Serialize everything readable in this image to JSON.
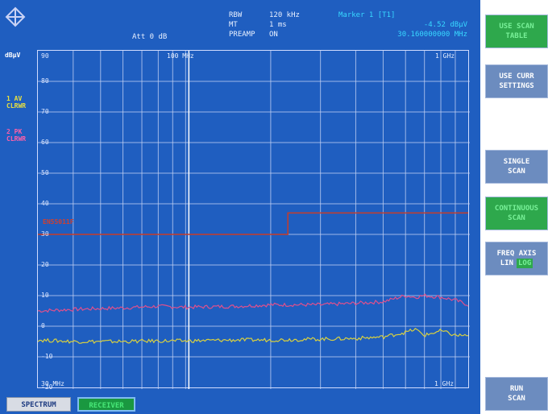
{
  "header": {
    "att": "Att 0 dB",
    "rbw_label": "RBW",
    "rbw_value": "120 kHz",
    "mt_label": "MT",
    "mt_value": "1 ms",
    "preamp_label": "PREAMP",
    "preamp_value": "ON",
    "marker_label": "Marker 1 [T1]",
    "marker_level": "-4.52 dBµV",
    "marker_freq": "30.160000000 MHz"
  },
  "side_labels": {
    "unit": "dBµV",
    "trace1_line1": "1 AV",
    "trace1_line2": "CLRWR",
    "trace2_line1": "2 PK",
    "trace2_line2": "CLRWR"
  },
  "chart_data": {
    "type": "line",
    "title": "",
    "xlabel": "",
    "ylabel": "dBµV",
    "x_scale": "log",
    "xlim_mhz": [
      30,
      1000
    ],
    "ylim": [
      -20,
      90
    ],
    "y_ticks": [
      "90",
      "80",
      "70",
      "60",
      "50",
      "40",
      "30",
      "20",
      "10",
      "0",
      "-10",
      "-20"
    ],
    "x_tick_top": [
      "100 MHz",
      "1 GHz"
    ],
    "x_tick_bottom": [
      "30 MHz",
      "1 GHz"
    ],
    "grid": true,
    "limit_line": {
      "name": "EN55011F",
      "color": "#c83c28",
      "points_mhz_db": [
        [
          30,
          30
        ],
        [
          230,
          30
        ],
        [
          230,
          37
        ],
        [
          1000,
          37
        ]
      ]
    },
    "series": [
      {
        "name": "2 PK",
        "color": "#e0508c",
        "x_mhz": [
          30,
          40,
          60,
          80,
          100,
          150,
          200,
          300,
          400,
          500,
          600,
          650,
          700,
          800,
          900,
          1000
        ],
        "values": [
          5,
          5.5,
          6,
          6.5,
          6.2,
          6.5,
          7,
          7,
          7.5,
          8,
          10,
          9.5,
          10,
          9.5,
          8.5,
          7
        ]
      },
      {
        "name": "1 AV",
        "color": "#d8d040",
        "x_mhz": [
          30,
          40,
          60,
          80,
          100,
          150,
          200,
          300,
          400,
          500,
          600,
          650,
          700,
          800,
          900,
          1000
        ],
        "values": [
          -4.5,
          -5,
          -5,
          -4.8,
          -4.8,
          -4.5,
          -4.5,
          -4.2,
          -4,
          -3.5,
          -2,
          -1,
          -3,
          -1.5,
          -3,
          -3
        ]
      }
    ]
  },
  "tabs": {
    "spectrum": "SPECTRUM",
    "receiver": "RECEIVER"
  },
  "softkeys": {
    "use_scan_table_1": "USE SCAN",
    "use_scan_table_2": "TABLE",
    "use_curr_1": "USE CURR",
    "use_curr_2": "SETTINGS",
    "single_1": "SINGLE",
    "single_2": "SCAN",
    "continuous_1": "CONTINUOUS",
    "continuous_2": "SCAN",
    "freq_axis_1": "FREQ AXIS",
    "freq_axis_lin": "LIN",
    "freq_axis_log": "LOG",
    "run_1": "RUN",
    "run_2": "SCAN"
  }
}
